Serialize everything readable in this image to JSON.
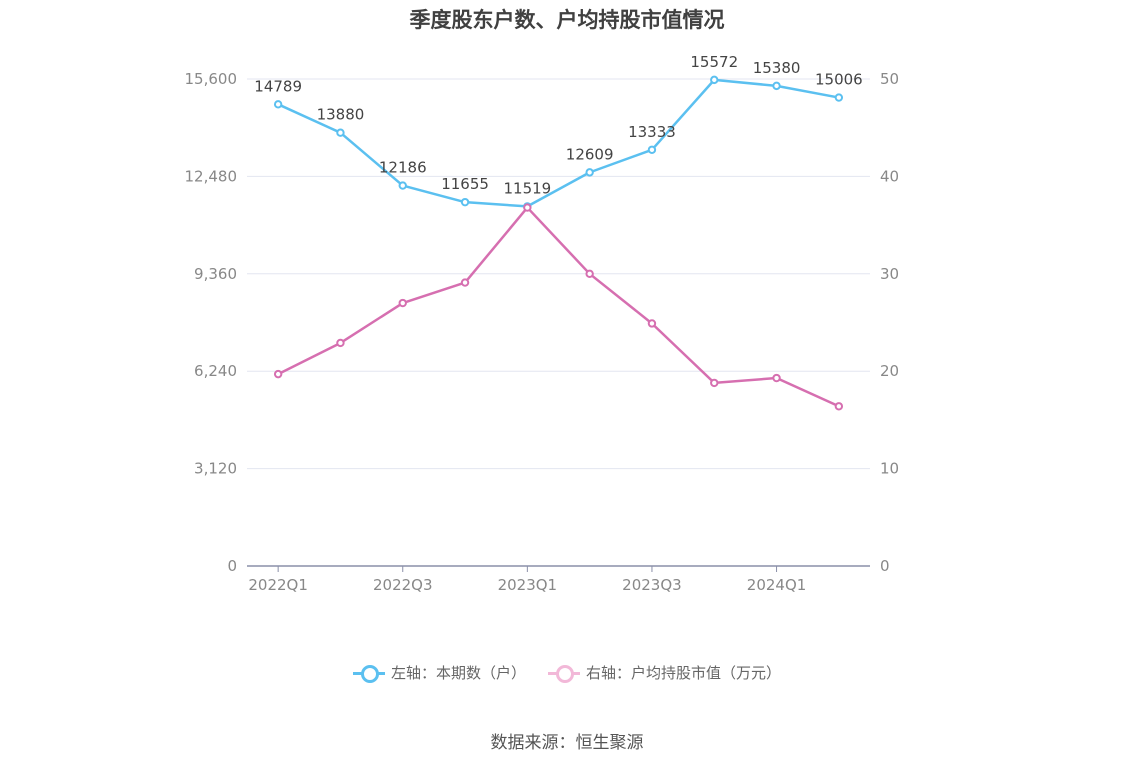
{
  "chart_data": {
    "type": "line",
    "title": "季度股东户数、户均持股市值情况",
    "categories": [
      "2022Q1",
      "2022Q2",
      "2022Q3",
      "2022Q4",
      "2023Q1",
      "2023Q2",
      "2023Q3",
      "2023Q4",
      "2024Q1",
      "2024Q2"
    ],
    "x_tick_labels": [
      "2022Q1",
      "2022Q3",
      "2023Q1",
      "2023Q3",
      "2024Q1"
    ],
    "left_axis": {
      "ylim": [
        0,
        15600
      ],
      "ticks": [
        "0",
        "3,120",
        "6,240",
        "9,360",
        "12,480",
        "15,600"
      ]
    },
    "right_axis": {
      "ylim": [
        0,
        50
      ],
      "ticks": [
        "0",
        "10",
        "20",
        "30",
        "40",
        "50"
      ]
    },
    "series": [
      {
        "name": "左轴：本期数（户）",
        "axis": "left",
        "color": "#5bc0f0",
        "values": [
          14789,
          13880,
          12186,
          11655,
          11519,
          12609,
          13333,
          15572,
          15380,
          15006
        ],
        "labels": [
          "14789",
          "13880",
          "12186",
          "11655",
          "11519",
          "12609",
          "13333",
          "15572",
          "15380",
          "15006"
        ]
      },
      {
        "name": "右轴：户均持股市值（万元）",
        "axis": "right",
        "color": "#d66fb0",
        "values": [
          19.7,
          22.9,
          27.0,
          29.1,
          36.8,
          30.0,
          24.9,
          18.8,
          19.3,
          16.4
        ]
      }
    ],
    "grid": true,
    "legend": "bottom-center"
  },
  "source": "数据来源：恒生聚源"
}
